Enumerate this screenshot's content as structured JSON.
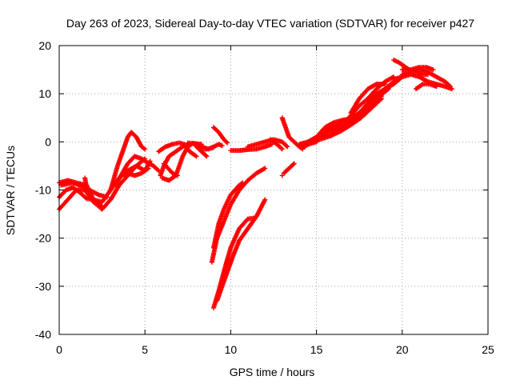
{
  "chart_data": {
    "type": "scatter",
    "title": "Day 263 of 2023, Sidereal Day-to-day VTEC variation (SDTVAR) for receiver p427",
    "xlabel": "GPS time / hours",
    "ylabel": "SDTVAR / TECUs",
    "xlim": [
      0,
      25
    ],
    "ylim": [
      -40,
      20
    ],
    "xticks": [
      0,
      5,
      10,
      15,
      20,
      25
    ],
    "yticks": [
      -40,
      -30,
      -20,
      -10,
      0,
      10,
      20
    ],
    "grid": true,
    "marker": "+",
    "color": "#ff0000",
    "series": [
      {
        "points": [
          [
            0,
            -8.5
          ],
          [
            0.5,
            -8
          ],
          [
            1,
            -8.5
          ],
          [
            1.6,
            -9
          ],
          [
            2,
            -12
          ],
          [
            2.5,
            -12.5
          ],
          [
            3,
            -10
          ],
          [
            3.5,
            -7.5
          ],
          [
            4,
            -6
          ],
          [
            4.5,
            -5
          ],
          [
            5,
            -6
          ],
          [
            5.3,
            -4
          ]
        ]
      },
      {
        "points": [
          [
            0,
            -14
          ],
          [
            0.5,
            -12
          ],
          [
            1,
            -10
          ],
          [
            1.5,
            -10
          ],
          [
            2,
            -12.5
          ],
          [
            2.5,
            -14
          ],
          [
            3,
            -12
          ],
          [
            3.5,
            -9
          ],
          [
            4,
            -7
          ],
          [
            4.5,
            -5
          ],
          [
            5,
            -3.5
          ]
        ]
      },
      {
        "points": [
          [
            0,
            -11.5
          ],
          [
            0.4,
            -10
          ],
          [
            0.8,
            -9.5
          ],
          [
            1.2,
            -10.5
          ],
          [
            1.6,
            -11.8
          ],
          [
            2,
            -12
          ],
          [
            2.5,
            -13.5
          ]
        ]
      },
      {
        "points": [
          [
            0.1,
            -9
          ],
          [
            0.8,
            -8.5
          ],
          [
            1.5,
            -9.5
          ],
          [
            2.3,
            -11
          ],
          [
            2.8,
            -11.5
          ]
        ]
      },
      {
        "points": [
          [
            1.5,
            -7.5
          ],
          [
            1.6,
            -9.5
          ],
          [
            1.8,
            -11.5
          ]
        ]
      },
      {
        "points": [
          [
            3,
            -10
          ],
          [
            3.4,
            -5
          ],
          [
            3.7,
            -2
          ],
          [
            4,
            1
          ],
          [
            4.2,
            2
          ],
          [
            4.5,
            1
          ],
          [
            4.8,
            -1
          ],
          [
            5,
            -1.5
          ]
        ]
      },
      {
        "points": [
          [
            3.3,
            -9
          ],
          [
            3.6,
            -7
          ],
          [
            4,
            -4.5
          ],
          [
            4.4,
            -3
          ],
          [
            4.8,
            -3.5
          ],
          [
            5,
            -4
          ],
          [
            5.5,
            -5
          ],
          [
            5.8,
            -6
          ]
        ]
      },
      {
        "points": [
          [
            3.6,
            -7
          ],
          [
            4,
            -6.5
          ],
          [
            4.4,
            -7
          ],
          [
            4.8,
            -6.5
          ],
          [
            5.2,
            -5.5
          ]
        ]
      },
      {
        "points": [
          [
            5.8,
            -2
          ],
          [
            6.2,
            -1
          ],
          [
            6.6,
            -0.5
          ],
          [
            7,
            -0.2
          ],
          [
            7.3,
            -0.5
          ],
          [
            7.6,
            -2
          ],
          [
            8,
            -3
          ]
        ]
      },
      {
        "points": [
          [
            5.9,
            -7
          ],
          [
            6.1,
            -5
          ],
          [
            6.4,
            -3
          ],
          [
            6.8,
            -2
          ],
          [
            7.2,
            -1
          ],
          [
            7.5,
            -0.5
          ]
        ]
      },
      {
        "points": [
          [
            6,
            -7.5
          ],
          [
            6.4,
            -8
          ],
          [
            6.8,
            -7
          ],
          [
            7,
            -5
          ],
          [
            7.2,
            -3
          ],
          [
            7.5,
            -1
          ],
          [
            7.8,
            -0.3
          ],
          [
            8.3,
            -0.5
          ]
        ]
      },
      {
        "points": [
          [
            6.1,
            -4.5
          ],
          [
            6.6,
            -6.5
          ],
          [
            6.9,
            -7
          ]
        ]
      },
      {
        "points": [
          [
            7.5,
            -0.2
          ],
          [
            7.9,
            -0.4
          ],
          [
            8.3,
            -1
          ],
          [
            8.7,
            -1.5
          ],
          [
            9,
            -1
          ],
          [
            9.3,
            -0.5
          ],
          [
            9.5,
            -0.8
          ]
        ]
      },
      {
        "points": [
          [
            8,
            -1
          ],
          [
            8.3,
            -2
          ],
          [
            8.6,
            -3
          ]
        ]
      },
      {
        "points": [
          [
            8.2,
            -1.5
          ],
          [
            8.6,
            -1.5
          ],
          [
            9,
            -1.2
          ]
        ]
      },
      {
        "points": [
          [
            9,
            -34.5
          ],
          [
            9.3,
            -31
          ],
          [
            9.6,
            -27
          ],
          [
            10,
            -22
          ],
          [
            10.5,
            -18
          ],
          [
            11,
            -16
          ],
          [
            11.4,
            -15.8
          ]
        ]
      },
      {
        "points": [
          [
            9.2,
            -33
          ],
          [
            9.7,
            -28
          ],
          [
            10.1,
            -24
          ],
          [
            10.5,
            -20.5
          ],
          [
            11,
            -18
          ],
          [
            11.5,
            -15.5
          ],
          [
            12,
            -12
          ]
        ]
      },
      {
        "points": [
          [
            8.9,
            -25
          ],
          [
            9.2,
            -20
          ],
          [
            9.6,
            -16.5
          ],
          [
            10,
            -13
          ],
          [
            10.5,
            -10
          ],
          [
            11,
            -8
          ],
          [
            11.5,
            -6.5
          ],
          [
            12,
            -5.5
          ]
        ]
      },
      {
        "points": [
          [
            9,
            -22
          ],
          [
            9.3,
            -17
          ],
          [
            9.6,
            -14
          ],
          [
            10,
            -11
          ],
          [
            10.5,
            -9
          ],
          [
            10.7,
            -8.5
          ]
        ]
      },
      {
        "points": [
          [
            9,
            3
          ],
          [
            9.3,
            2
          ],
          [
            9.6,
            0.5
          ],
          [
            9.8,
            -0.2
          ]
        ]
      },
      {
        "points": [
          [
            10,
            -1.8
          ],
          [
            10.5,
            -1.8
          ],
          [
            11,
            -1.6
          ],
          [
            11.5,
            -1.5
          ],
          [
            12,
            -1
          ],
          [
            12.4,
            -0.5
          ]
        ]
      },
      {
        "points": [
          [
            11,
            -1
          ],
          [
            11.5,
            -0.5
          ],
          [
            12,
            0
          ],
          [
            12.5,
            0.5
          ],
          [
            13,
            0
          ],
          [
            13.3,
            -1
          ]
        ]
      },
      {
        "points": [
          [
            12.3,
            0.5
          ],
          [
            12.7,
            -0.5
          ],
          [
            13,
            -1.5
          ]
        ]
      },
      {
        "points": [
          [
            13,
            5
          ],
          [
            13.2,
            3
          ],
          [
            13.4,
            1
          ],
          [
            13.7,
            0
          ],
          [
            14,
            -1
          ],
          [
            14.2,
            -1.5
          ]
        ]
      },
      {
        "points": [
          [
            13.1,
            -6.5
          ],
          [
            13.4,
            -5.5
          ],
          [
            13.7,
            -4.5
          ]
        ]
      },
      {
        "points": [
          [
            13,
            -7
          ]
        ]
      },
      {
        "points": [
          [
            14,
            -1
          ],
          [
            14.5,
            -0.5
          ],
          [
            15,
            0
          ],
          [
            15.5,
            2
          ],
          [
            16,
            3.5
          ],
          [
            16.5,
            4
          ],
          [
            17,
            5
          ],
          [
            17.5,
            6
          ],
          [
            18,
            8
          ],
          [
            18.5,
            10
          ],
          [
            19,
            11
          ],
          [
            19.5,
            12
          ],
          [
            20,
            13.5
          ]
        ]
      },
      {
        "points": [
          [
            14,
            -0.5
          ],
          [
            14.5,
            0
          ],
          [
            15,
            1
          ],
          [
            15.5,
            2.5
          ],
          [
            16,
            3
          ],
          [
            16.5,
            3.5
          ],
          [
            17,
            5.5
          ],
          [
            17.5,
            7.5
          ],
          [
            18,
            9
          ],
          [
            18.5,
            11
          ],
          [
            19,
            12.5
          ],
          [
            19.5,
            13.5
          ]
        ]
      },
      {
        "points": [
          [
            14.2,
            -1.2
          ],
          [
            15,
            0.5
          ],
          [
            15.8,
            1.5
          ],
          [
            16.5,
            3
          ],
          [
            17.2,
            5
          ],
          [
            18,
            7.5
          ],
          [
            18.8,
            10
          ],
          [
            19.4,
            12
          ],
          [
            19.8,
            13
          ]
        ]
      },
      {
        "points": [
          [
            14.5,
            0
          ],
          [
            15.3,
            1.5
          ],
          [
            16.2,
            3
          ],
          [
            17,
            4.5
          ],
          [
            17.8,
            7
          ],
          [
            18.5,
            9
          ],
          [
            19.2,
            11
          ]
        ]
      },
      {
        "points": [
          [
            15,
            1
          ],
          [
            15.5,
            3
          ],
          [
            16,
            4
          ],
          [
            16.5,
            4.5
          ],
          [
            17,
            4.8
          ]
        ]
      },
      {
        "points": [
          [
            14,
            -0.8
          ],
          [
            14.6,
            -0.3
          ],
          [
            15.2,
            0.5
          ],
          [
            15.8,
            1.2
          ],
          [
            16.4,
            2.2
          ],
          [
            17,
            3.5
          ],
          [
            17.6,
            5
          ],
          [
            18.2,
            7
          ],
          [
            18.8,
            9
          ]
        ]
      },
      {
        "points": [
          [
            17,
            6
          ],
          [
            17.5,
            9
          ],
          [
            18,
            11
          ],
          [
            18.5,
            12
          ],
          [
            19,
            12
          ]
        ]
      },
      {
        "points": [
          [
            17.5,
            5
          ],
          [
            18,
            7
          ],
          [
            18.5,
            9
          ],
          [
            19,
            11
          ],
          [
            19.5,
            12.5
          ]
        ]
      },
      {
        "points": [
          [
            17,
            4
          ],
          [
            17.5,
            6
          ],
          [
            18,
            8
          ],
          [
            18.4,
            9
          ],
          [
            18.8,
            9.5
          ]
        ]
      },
      {
        "points": [
          [
            19.5,
            13
          ],
          [
            20,
            13.5
          ],
          [
            20.5,
            14
          ],
          [
            21,
            13.5
          ],
          [
            21.5,
            12.5
          ],
          [
            22,
            12
          ],
          [
            22.5,
            11.5
          ],
          [
            22.9,
            11
          ]
        ]
      },
      {
        "points": [
          [
            20,
            14
          ],
          [
            20.5,
            14.5
          ],
          [
            21,
            15
          ],
          [
            21.5,
            14.5
          ],
          [
            22,
            13.5
          ],
          [
            22.5,
            12.5
          ],
          [
            22.8,
            11.5
          ]
        ]
      },
      {
        "points": [
          [
            19.5,
            17
          ],
          [
            19.8,
            16.5
          ],
          [
            20,
            16
          ],
          [
            20.4,
            15
          ],
          [
            20.8,
            14.5
          ],
          [
            21.2,
            14
          ],
          [
            21.5,
            14
          ]
        ]
      },
      {
        "points": [
          [
            20,
            15
          ],
          [
            20.5,
            15
          ],
          [
            21,
            15.5
          ],
          [
            21.4,
            15.5
          ],
          [
            21.8,
            15
          ]
        ]
      },
      {
        "points": [
          [
            20.8,
            11
          ],
          [
            21.2,
            12
          ],
          [
            21.6,
            12
          ],
          [
            22,
            11.5
          ]
        ]
      }
    ]
  }
}
